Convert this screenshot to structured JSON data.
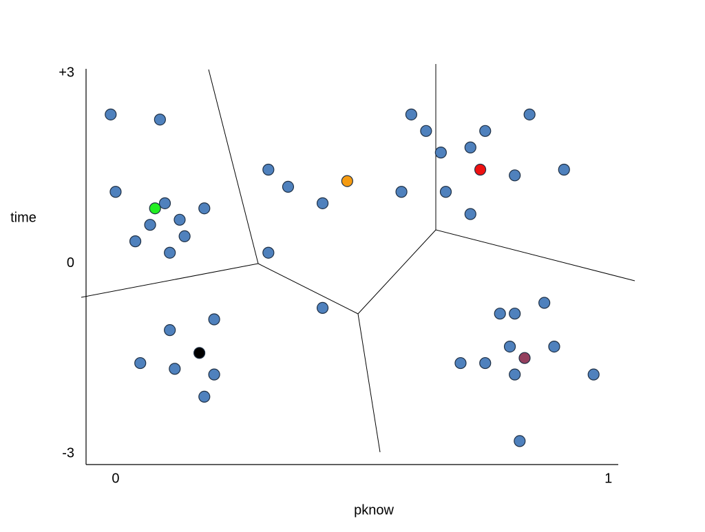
{
  "chart_data": {
    "type": "scatter",
    "x_label": "pknow",
    "y_label": "time",
    "xlim": [
      -0.06,
      1.02
    ],
    "ylim": [
      -3.17,
      3.07
    ],
    "xticks": [
      0,
      1
    ],
    "yticks": [
      {
        "value": 3,
        "label": "+3"
      },
      0,
      -3
    ],
    "grid": false,
    "series": [
      {
        "color": "#4f81bd",
        "x": [
          -0.01,
          0.09,
          0.0,
          0.1,
          0.07,
          0.04,
          0.13,
          0.14,
          0.11,
          0.18,
          0.31,
          0.35,
          0.42,
          0.31,
          0.42,
          0.6,
          0.63,
          0.66,
          0.58,
          0.67,
          0.72,
          0.75,
          0.72,
          0.84,
          0.81,
          0.91,
          0.87,
          0.78,
          0.81,
          0.8,
          0.89,
          0.7,
          0.75,
          0.81,
          0.97,
          0.82,
          0.11,
          0.2,
          0.05,
          0.12,
          0.2,
          0.18
        ],
        "values": [
          2.35,
          2.27,
          1.13,
          0.95,
          0.61,
          0.35,
          0.69,
          0.43,
          0.17,
          0.87,
          1.48,
          1.21,
          0.95,
          0.17,
          -0.7,
          2.35,
          2.09,
          1.75,
          1.13,
          1.13,
          1.83,
          2.09,
          0.78,
          2.35,
          1.39,
          1.48,
          -0.62,
          -0.79,
          -0.79,
          -1.31,
          -1.31,
          -1.57,
          -1.57,
          -1.75,
          -1.75,
          -2.8,
          -1.05,
          -0.88,
          -1.57,
          -1.66,
          -1.75,
          -2.1
        ]
      },
      {
        "color": "#22ee22",
        "x": [
          0.08
        ],
        "values": [
          0.87
        ]
      },
      {
        "color": "#f59b11",
        "x": [
          0.47
        ],
        "values": [
          1.3
        ]
      },
      {
        "color": "#ee1111",
        "x": [
          0.74
        ],
        "values": [
          1.48
        ]
      },
      {
        "color": "#000000",
        "x": [
          0.17
        ],
        "values": [
          -1.41
        ]
      },
      {
        "color": "#943f5e",
        "x": [
          0.83
        ],
        "values": [
          -1.49
        ]
      }
    ]
  }
}
